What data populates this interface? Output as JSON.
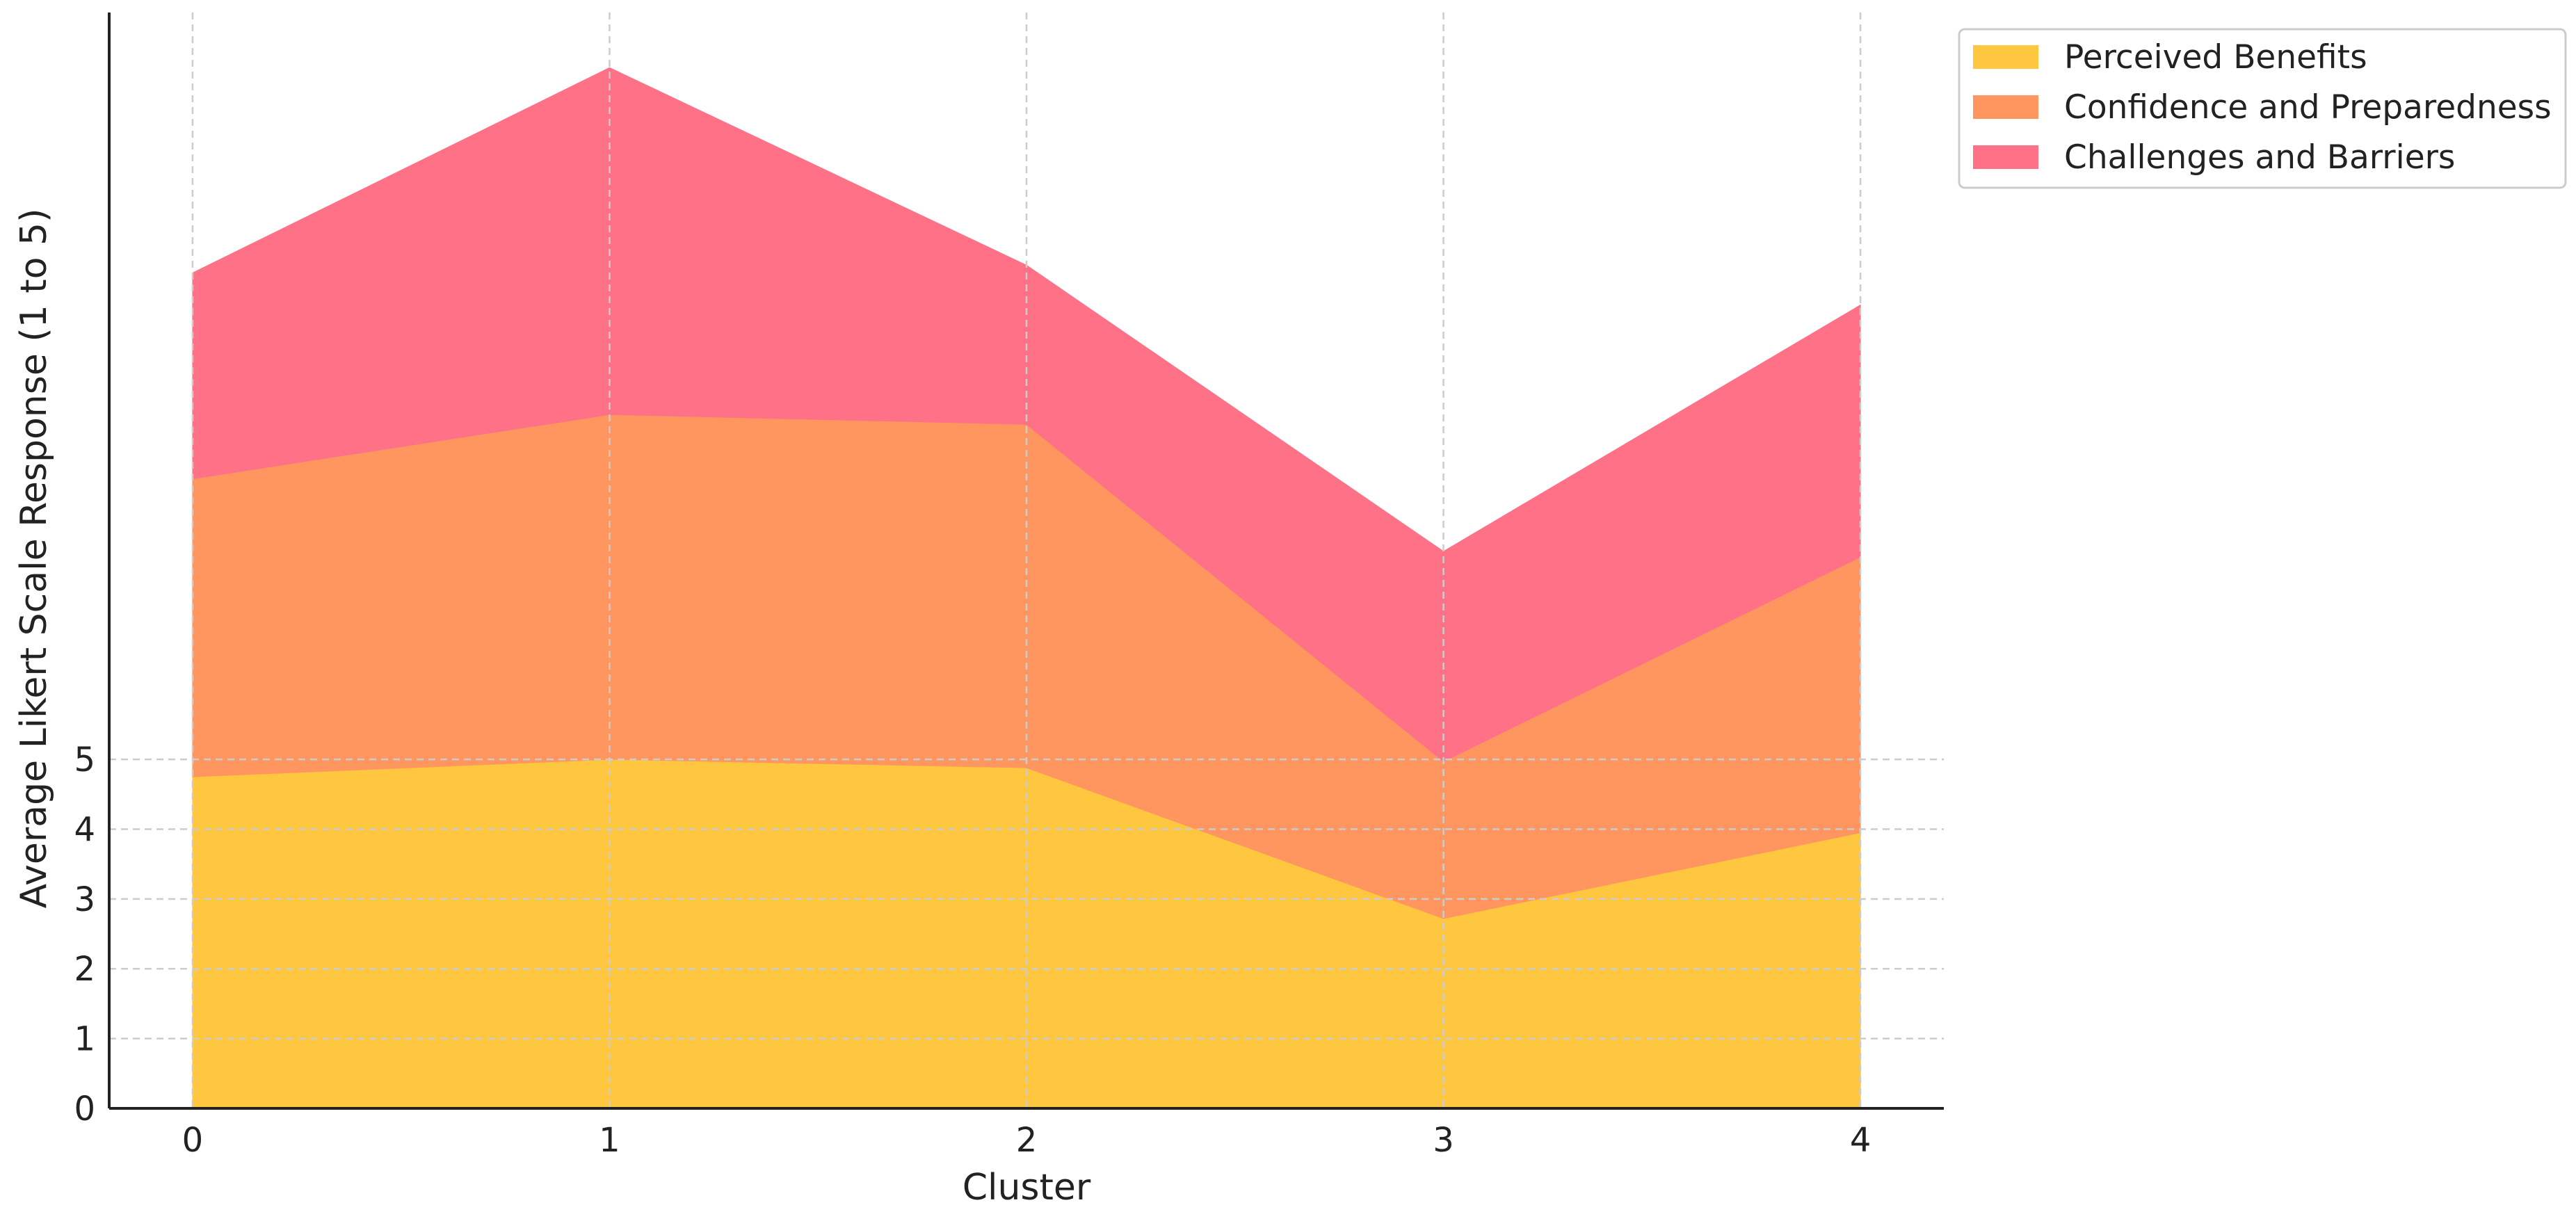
{
  "chart_data": {
    "type": "area",
    "stacked": true,
    "x": [
      0,
      1,
      2,
      3,
      4
    ],
    "xlabel": "Cluster",
    "ylabel": "Average Likert Scale Response (1 to 5)",
    "x_ticks": [
      "0",
      "1",
      "2",
      "3",
      "4"
    ],
    "y_ticks": [
      "0",
      "1",
      "2",
      "3",
      "4",
      "5"
    ],
    "xlim": [
      -0.2,
      4.2
    ],
    "ylim": [
      0,
      15.7
    ],
    "grid": true,
    "legend_position": "top-right",
    "series": [
      {
        "name": "Perceived Benefits",
        "color": "#ffc640",
        "values": [
          4.75,
          5.0,
          4.88,
          2.72,
          3.95
        ]
      },
      {
        "name": "Confidence and Preparedness",
        "color": "#ff965f",
        "values": [
          4.27,
          4.94,
          4.92,
          2.25,
          3.95
        ]
      },
      {
        "name": "Challenges and Barriers",
        "color": "#ff7187",
        "values": [
          2.95,
          4.97,
          2.28,
          3.01,
          3.61
        ]
      }
    ]
  }
}
